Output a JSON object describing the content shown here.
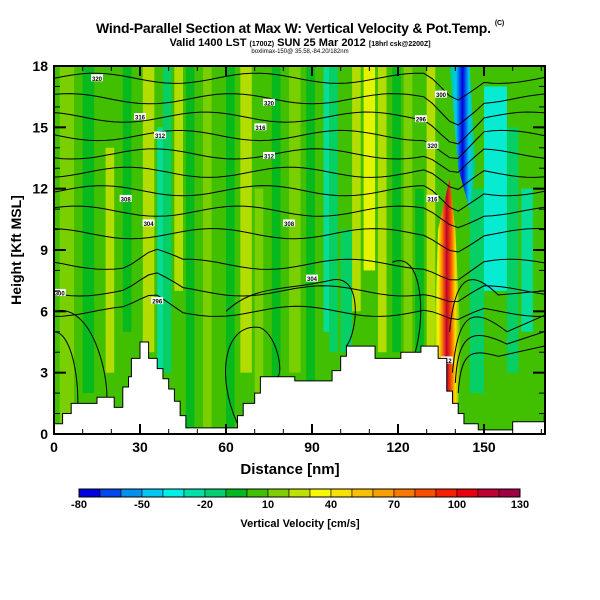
{
  "chart_data": {
    "type": "heatmap",
    "title": "Wind-Parallel Section at Max W: Vertical Velocity & Pot.Temp.",
    "title_mark": "(C)",
    "subtitle": "Valid 1400 LST",
    "subtitle_utc": "(1700Z)",
    "subtitle_date": "SUN 25 Mar 2012",
    "subtitle_init": "[18hrl csk@2200Z]",
    "subtitle_small": "boxlimax-150@ 35.58,-84.20/182nm",
    "xlabel": "Distance [nm]",
    "ylabel": "Height [Kft MSL]",
    "xlim": [
      0,
      171
    ],
    "ylim": [
      0,
      18
    ],
    "xticks": [
      0,
      30,
      60,
      90,
      120,
      150
    ],
    "yticks": [
      0,
      3,
      6,
      9,
      12,
      15,
      18
    ],
    "colorbar": {
      "label": "Vertical Velocity [cm/s]",
      "min": -80,
      "max": 130,
      "step": 10,
      "tick_labels": [
        "-80",
        "-50",
        "-20",
        "10",
        "40",
        "70",
        "100",
        "130"
      ],
      "colors": [
        "#0000e0",
        "#0048f0",
        "#0090f0",
        "#00c8f0",
        "#00f0e8",
        "#00e0a8",
        "#00d070",
        "#00b820",
        "#40c000",
        "#80d000",
        "#c0e000",
        "#f8f800",
        "#f8e000",
        "#f8c000",
        "#f8a000",
        "#f87800",
        "#f85000",
        "#f82000",
        "#e80010",
        "#c00030",
        "#a00040"
      ]
    },
    "terrain_kft": [
      [
        0,
        0.5
      ],
      [
        3,
        1.0
      ],
      [
        6,
        1.5
      ],
      [
        15,
        1.8
      ],
      [
        21,
        1.3
      ],
      [
        24,
        2.3
      ],
      [
        26,
        2.8
      ],
      [
        27,
        3.7
      ],
      [
        30,
        4.5
      ],
      [
        33,
        3.7
      ],
      [
        36,
        3.2
      ],
      [
        38,
        2.7
      ],
      [
        40,
        2.2
      ],
      [
        42,
        1.6
      ],
      [
        44,
        0.9
      ],
      [
        46,
        0.3
      ],
      [
        60,
        0.3
      ],
      [
        64,
        0.9
      ],
      [
        66,
        1.5
      ],
      [
        70,
        2.0
      ],
      [
        72,
        2.8
      ],
      [
        80,
        2.8
      ],
      [
        84,
        2.6
      ],
      [
        91,
        2.6
      ],
      [
        97,
        3.1
      ],
      [
        100,
        3.8
      ],
      [
        102,
        4.3
      ],
      [
        112,
        3.7
      ],
      [
        119,
        3.7
      ],
      [
        121,
        4.0
      ],
      [
        128,
        4.3
      ],
      [
        134,
        3.7
      ],
      [
        137,
        2.1
      ],
      [
        139,
        1.5
      ],
      [
        141,
        1.0
      ],
      [
        143,
        0.5
      ],
      [
        148,
        0.2
      ],
      [
        160,
        0.6
      ],
      [
        171,
        0.9
      ]
    ],
    "theta_contour_labels": [
      "320",
      "316",
      "312",
      "308",
      "304",
      "300",
      "296"
    ],
    "features": [
      {
        "name": "updraft-core",
        "x_nm": 137,
        "height_kft": [
          3,
          12
        ],
        "max_cm_s": 130
      },
      {
        "name": "downdraft-core",
        "x_nm": 140,
        "height_kft": [
          13,
          18
        ],
        "min_cm_s": -80
      }
    ]
  }
}
